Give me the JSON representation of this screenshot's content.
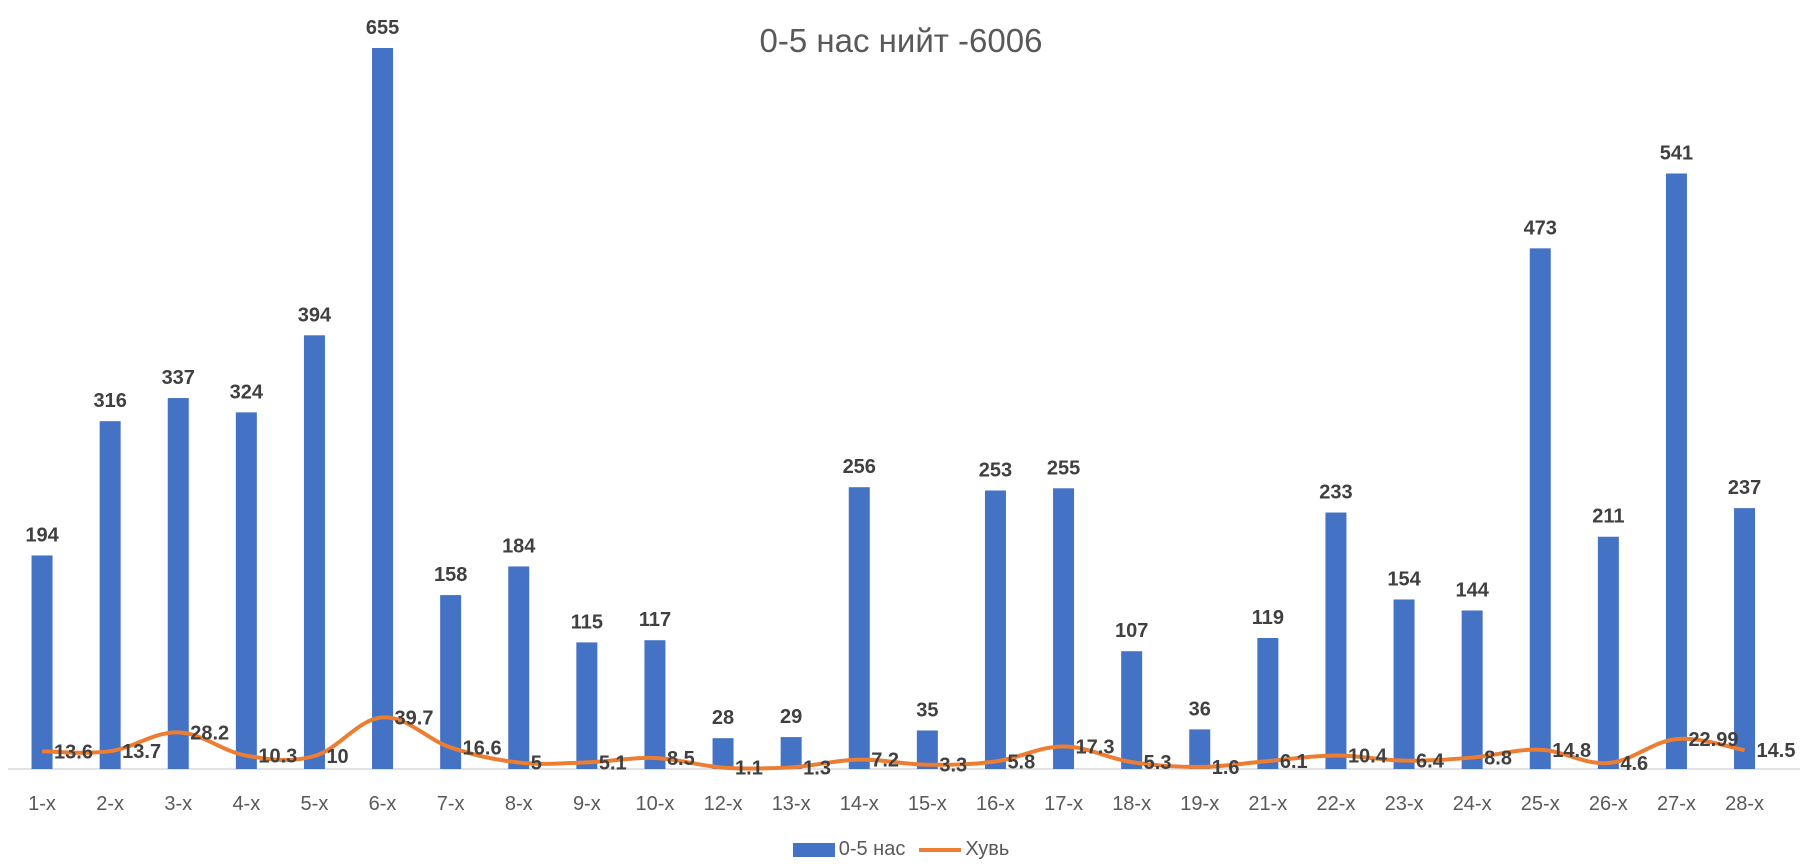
{
  "chart_data": {
    "type": "bar",
    "title": "0-5 нас   нийт -6006",
    "xlabel": "",
    "ylabel": "",
    "ylim": [
      0,
      680
    ],
    "grid": false,
    "legend_position": "bottom",
    "categories": [
      "1-х",
      "2-х",
      "3-х",
      "4-х",
      "5-х",
      "6-х",
      "7-х",
      "8-х",
      "9-х",
      "10-х",
      "12-х",
      "13-х",
      "14-х",
      "15-х",
      "16-х",
      "17-х",
      "18-х",
      "19-х",
      "21-х",
      "22-х",
      "23-х",
      "24-х",
      "25-х",
      "26-х",
      "27-х",
      "28-х"
    ],
    "series": [
      {
        "name": "0-5 нас",
        "type": "bar",
        "color": "#4472C4",
        "values": [
          194,
          316,
          337,
          324,
          394,
          655,
          158,
          184,
          115,
          117,
          28,
          29,
          256,
          35,
          253,
          255,
          107,
          36,
          119,
          233,
          154,
          144,
          473,
          211,
          541,
          237
        ]
      },
      {
        "name": "Хувь",
        "type": "line",
        "color": "#ED7D31",
        "values": [
          13.6,
          13.7,
          28.2,
          10.3,
          10,
          39.7,
          16.6,
          5,
          5.1,
          8.5,
          1.1,
          1.3,
          7.2,
          3.3,
          5.8,
          17.3,
          5.3,
          1.6,
          6.1,
          10.4,
          6.4,
          8.8,
          14.8,
          4.6,
          22.99,
          14.5
        ],
        "labels": [
          "13.6",
          "13.7",
          "28.2",
          "10.3",
          "10",
          "39.7",
          "16.6",
          "5",
          "5.1",
          "8.5",
          "1.1",
          "1.3",
          "7.2",
          "3.3",
          "5.8",
          "17.3",
          "5.3",
          "1.6",
          "6.1",
          "10.4",
          "6.4",
          "8.8",
          "14.8",
          "4.6",
          "22.99",
          "14.5"
        ]
      }
    ]
  }
}
